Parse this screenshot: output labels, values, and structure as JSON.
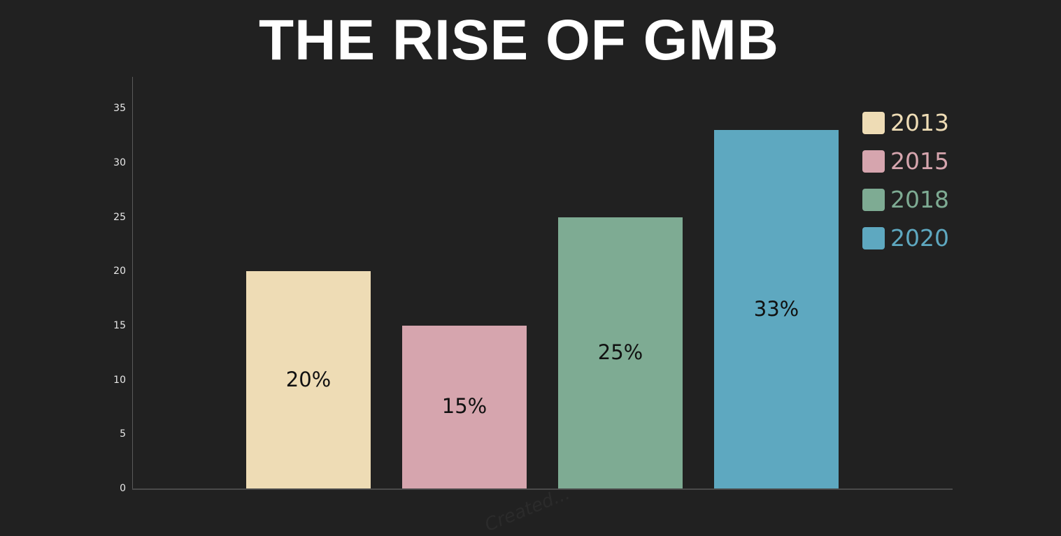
{
  "title": "THE RISE OF GMB",
  "watermark": "Created...",
  "chart_data": {
    "type": "bar",
    "title": "THE RISE OF GMB",
    "xlabel": "",
    "ylabel": "",
    "categories": [
      "2013",
      "2015",
      "2018",
      "2020"
    ],
    "values": [
      20,
      15,
      25,
      33
    ],
    "data_labels": [
      "20%",
      "15%",
      "25%",
      "33%"
    ],
    "colors": [
      "#eedcb5",
      "#d6a5ae",
      "#7eab93",
      "#5ea8c0"
    ],
    "ylim": [
      0,
      38
    ],
    "yticks": [
      0,
      5,
      10,
      15,
      20,
      25,
      30,
      35
    ],
    "grid": false,
    "legend_position": "top-right",
    "legend": [
      "2013",
      "2015",
      "2018",
      "2020"
    ]
  },
  "axis": {
    "yticks": [
      "0",
      "5",
      "10",
      "15",
      "20",
      "25",
      "30",
      "35"
    ]
  },
  "bars": [
    {
      "year": "2013",
      "label": "20%",
      "value": 20,
      "color": "#eedcb5"
    },
    {
      "year": "2015",
      "label": "15%",
      "value": 15,
      "color": "#d6a5ae"
    },
    {
      "year": "2018",
      "label": "25%",
      "value": 25,
      "color": "#7eab93"
    },
    {
      "year": "2020",
      "label": "33%",
      "value": 33,
      "color": "#5ea8c0"
    }
  ],
  "legend": [
    {
      "label": "2013",
      "color": "#eedcb5"
    },
    {
      "label": "2015",
      "color": "#d6a5ae"
    },
    {
      "label": "2018",
      "color": "#7eab93"
    },
    {
      "label": "2020",
      "color": "#5ea8c0"
    }
  ]
}
